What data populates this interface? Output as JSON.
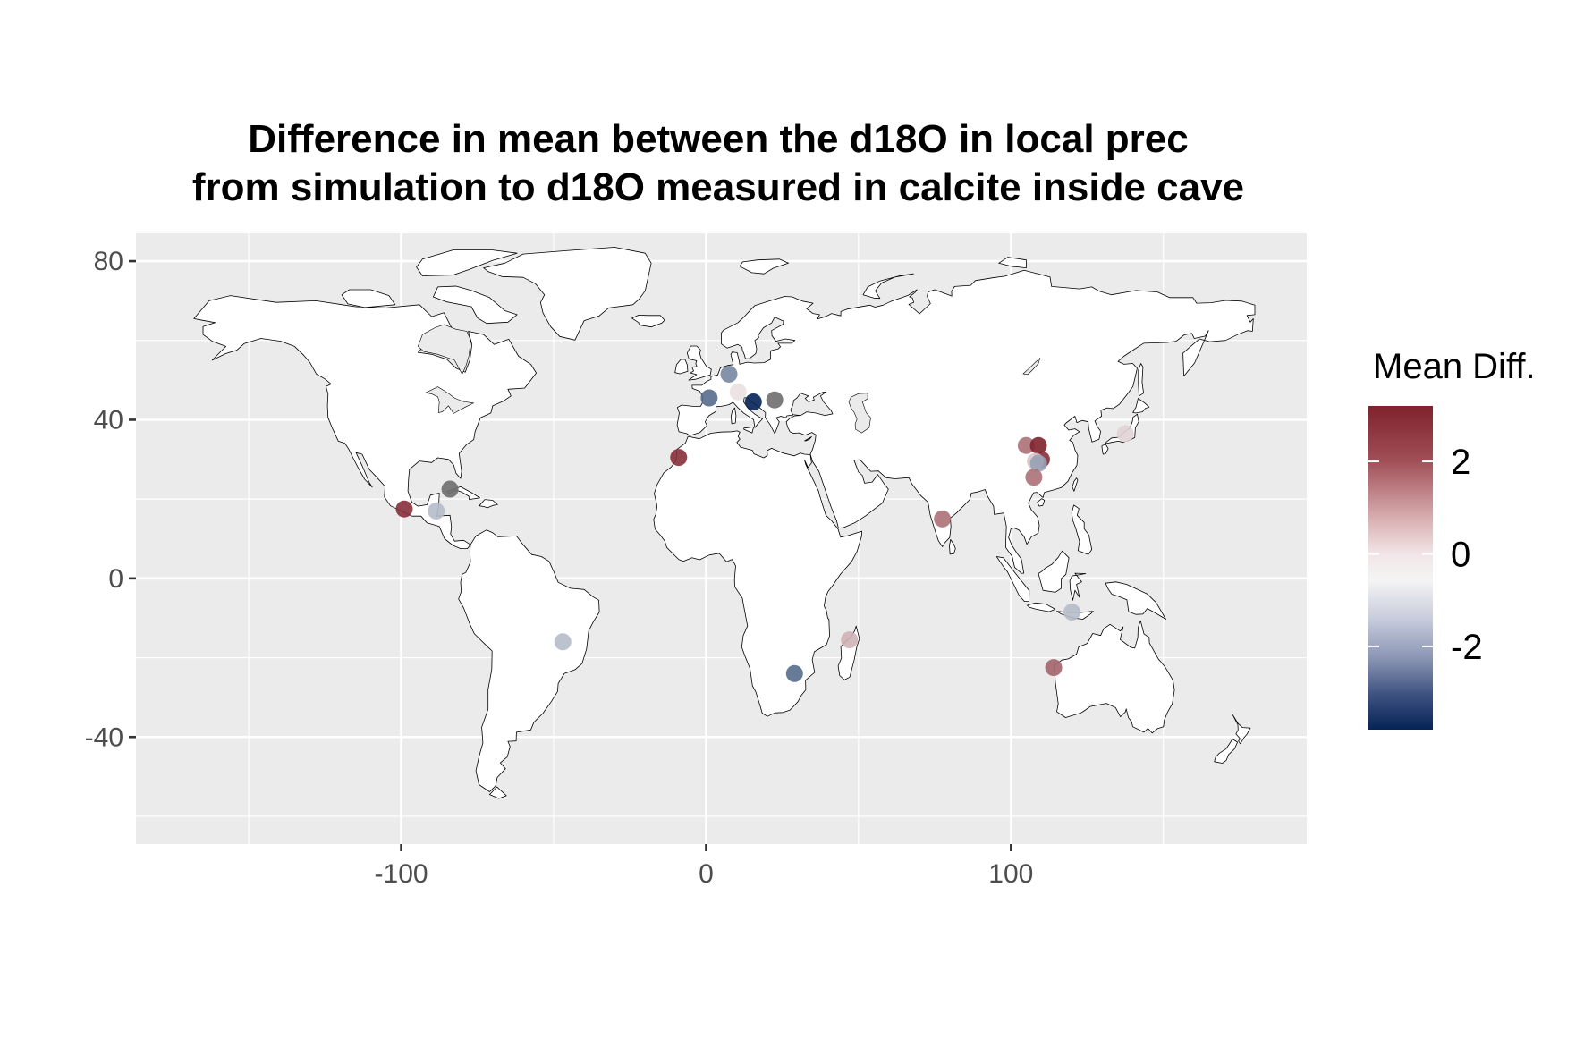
{
  "title": {
    "line1": "Difference in mean between the d18O in local prec",
    "line2": "from simulation to d18O measured in calcite inside cave"
  },
  "legend": {
    "title": "Mean Diff.",
    "labels": [
      "2",
      "0",
      "-2"
    ],
    "colors": {
      "high": "#7f222c",
      "mid": "#f4f4f4",
      "low": "#062456",
      "na": "#6e6e6e"
    }
  },
  "colors": {
    "panel_background": "#ebebeb",
    "gridline": "#ffffff",
    "land": "#ffffff",
    "coastline": "#000000"
  },
  "chart_data": {
    "type": "scatter",
    "title": "Difference in mean between the d18O in local prec from simulation to d18O measured in calcite inside cave",
    "xlabel": "",
    "ylabel": "",
    "xlim": [
      -187,
      197
    ],
    "ylim": [
      -67,
      87
    ],
    "x_ticks": [
      -100,
      0,
      100
    ],
    "x_tick_labels": [
      "-100",
      "0",
      "100"
    ],
    "y_ticks": [
      80,
      40,
      0,
      -40
    ],
    "y_tick_labels": [
      "80",
      "40",
      "0",
      "-40"
    ],
    "grid": true,
    "legend_position": "right",
    "color_scale": {
      "name": "Mean Diff.",
      "min": -3.8,
      "max": 3.2,
      "breaks": [
        2,
        0,
        -2
      ]
    },
    "points": [
      {
        "lon": -99,
        "lat": 17.5,
        "value": 3.0
      },
      {
        "lon": -84,
        "lat": 22.5,
        "value": null
      },
      {
        "lon": -88.5,
        "lat": 17,
        "value": -1.0
      },
      {
        "lon": -47,
        "lat": -16,
        "value": -1.0
      },
      {
        "lon": -9,
        "lat": 30.5,
        "value": 3.0
      },
      {
        "lon": 1,
        "lat": 45.5,
        "value": -2.5
      },
      {
        "lon": 7.5,
        "lat": 51.5,
        "value": -2.0
      },
      {
        "lon": 10.5,
        "lat": 47,
        "value": 0.3
      },
      {
        "lon": 15.5,
        "lat": 44.5,
        "value": -3.8
      },
      {
        "lon": 22.5,
        "lat": 45,
        "value": null
      },
      {
        "lon": 29,
        "lat": -24,
        "value": -2.5
      },
      {
        "lon": 47,
        "lat": -15.5,
        "value": 1.0
      },
      {
        "lon": 77.5,
        "lat": 15,
        "value": 2.0
      },
      {
        "lon": 105,
        "lat": 33.5,
        "value": 2.0
      },
      {
        "lon": 109,
        "lat": 33.5,
        "value": 3.2
      },
      {
        "lon": 110,
        "lat": 30,
        "value": 3.0
      },
      {
        "lon": 108,
        "lat": 29.5,
        "value": 0.7
      },
      {
        "lon": 109,
        "lat": 29,
        "value": -1.5
      },
      {
        "lon": 107.5,
        "lat": 25.5,
        "value": 2.0
      },
      {
        "lon": 120,
        "lat": -8.5,
        "value": -1.0
      },
      {
        "lon": 114,
        "lat": -22.5,
        "value": 2.2
      },
      {
        "lon": 137.5,
        "lat": 36.5,
        "value": 0.5
      }
    ]
  }
}
